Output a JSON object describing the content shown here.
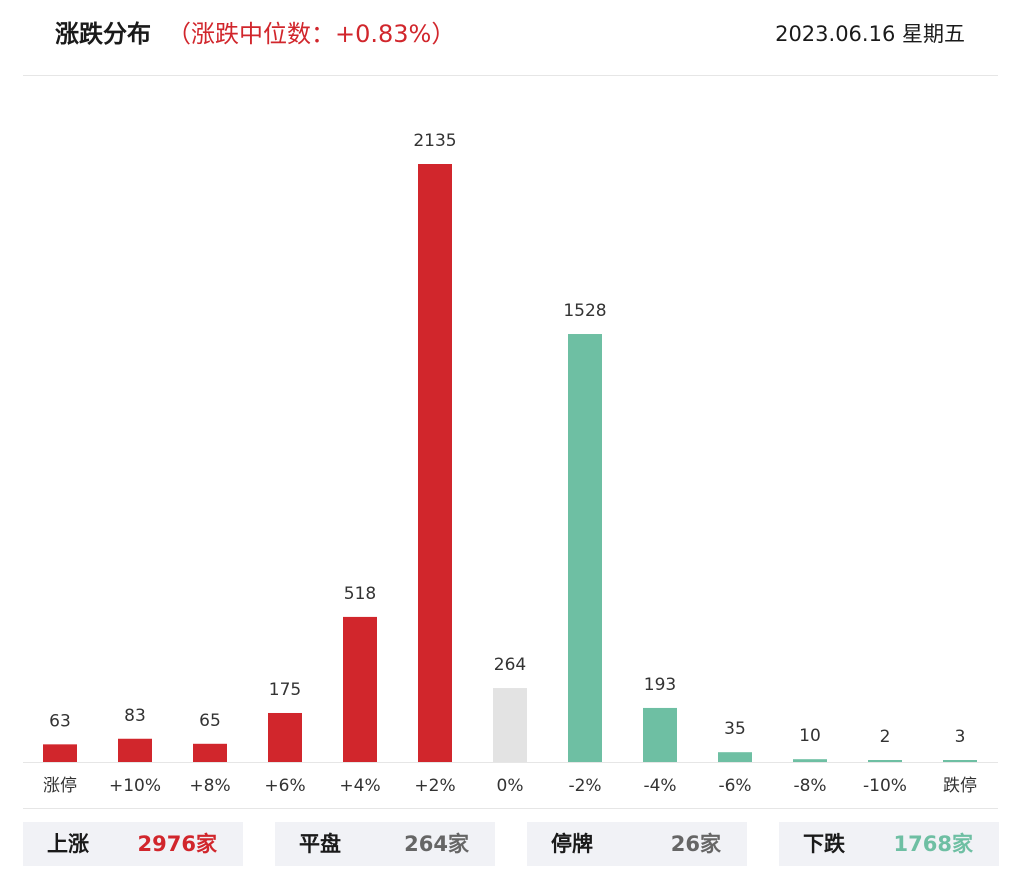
{
  "header": {
    "title": "涨跌分布",
    "subtitle": "（涨跌中位数：+0.83%）",
    "date": "2023.06.16 星期五"
  },
  "colors": {
    "up": "#d1262c",
    "flat": "#e3e3e3",
    "down": "#6ebfa3",
    "axis": "#e6e6e6"
  },
  "chart_data": {
    "type": "bar",
    "title": "",
    "xlabel": "",
    "ylabel": "",
    "categories": [
      "涨停",
      "+10%",
      "+8%",
      "+6%",
      "+4%",
      "+2%",
      "0%",
      "-2%",
      "-4%",
      "-6%",
      "-8%",
      "-10%",
      "跌停"
    ],
    "values": [
      63,
      83,
      65,
      175,
      518,
      2135,
      264,
      1528,
      193,
      35,
      10,
      2,
      3
    ],
    "bar_groups": [
      "up",
      "up",
      "up",
      "up",
      "up",
      "up",
      "flat",
      "down",
      "down",
      "down",
      "down",
      "down",
      "down"
    ],
    "ylim": [
      0,
      2135
    ],
    "grid": false,
    "legend": "none"
  },
  "summary": [
    {
      "label": "上涨",
      "count": "2976家",
      "color": "#d1262c"
    },
    {
      "label": "平盘",
      "count": "264家",
      "color": "#666666"
    },
    {
      "label": "停牌",
      "count": "26家",
      "color": "#666666"
    },
    {
      "label": "下跌",
      "count": "1768家",
      "color": "#6ebfa3"
    }
  ]
}
